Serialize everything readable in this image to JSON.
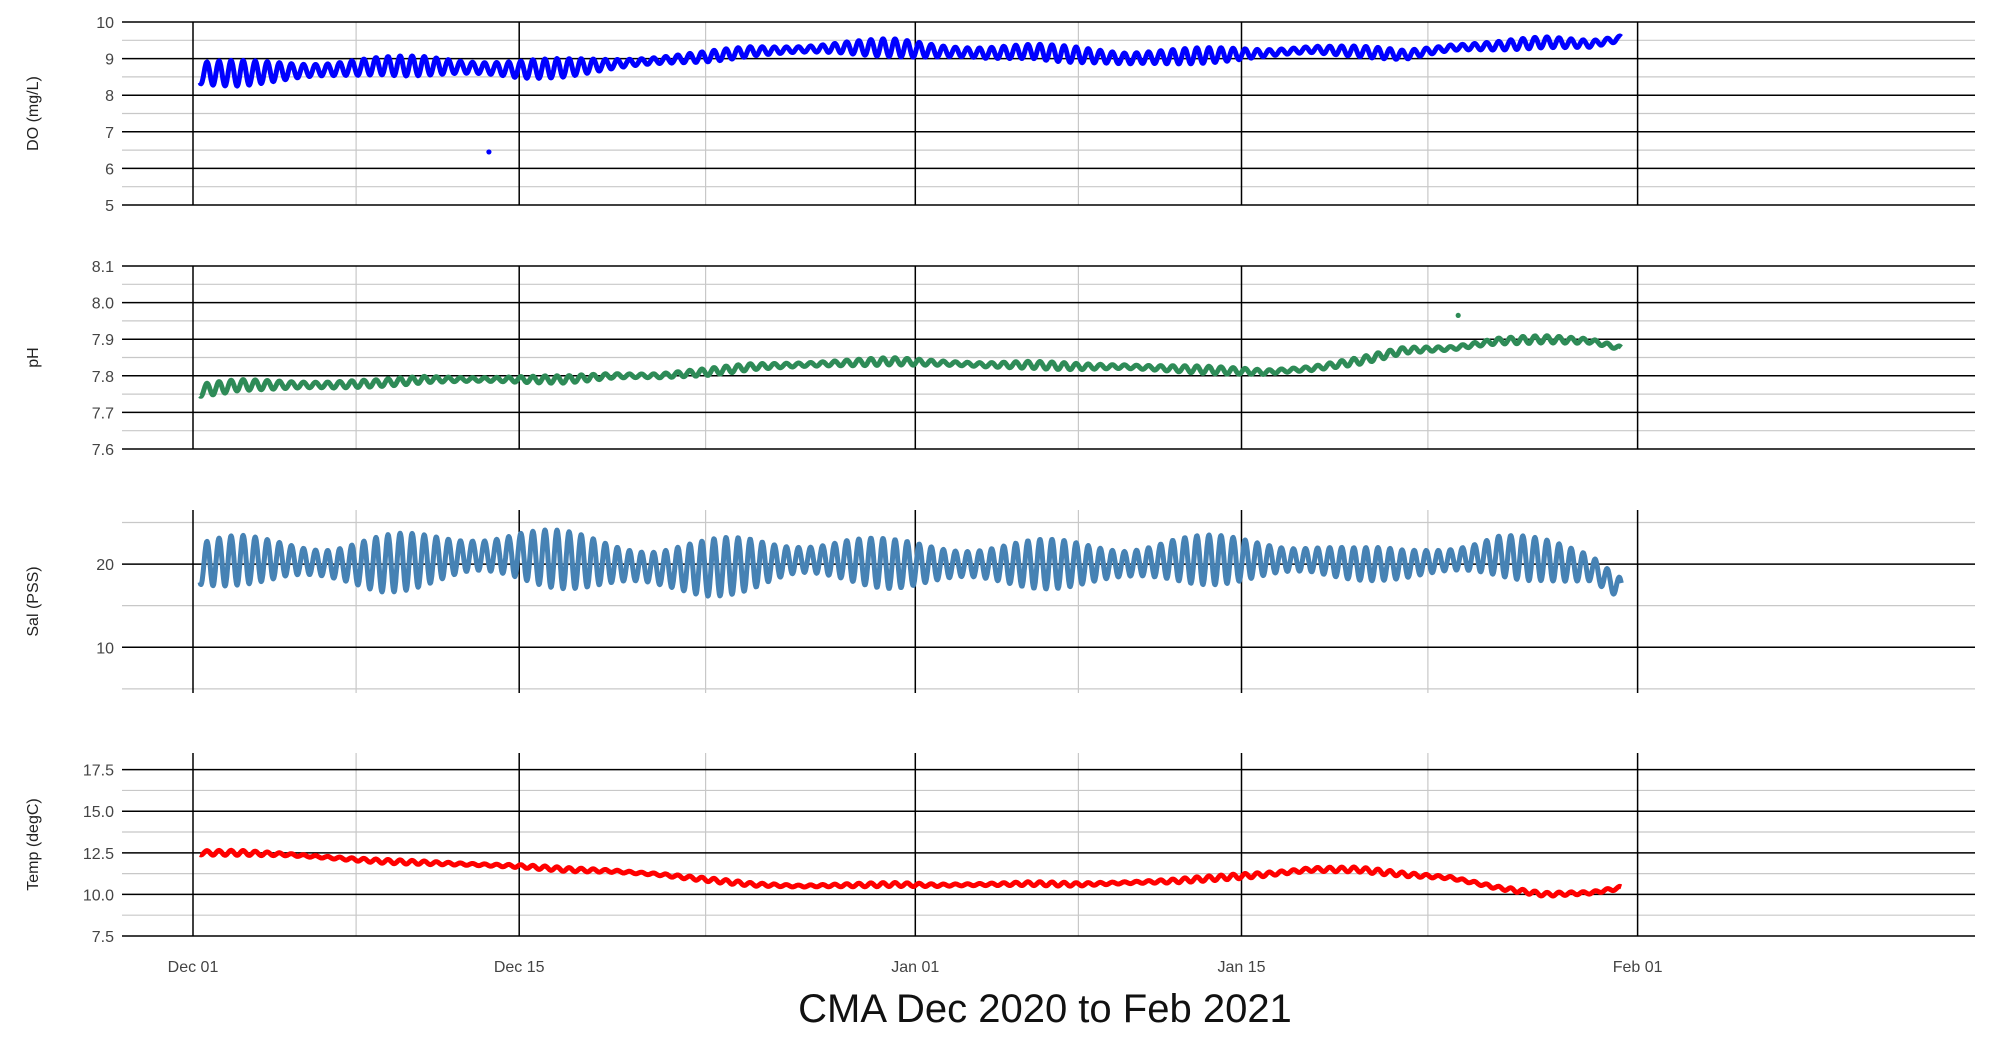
{
  "chart_data": {
    "type": "line",
    "title": "CMA Dec 2020 to Feb 2021",
    "x_range": [
      "2020-11-28",
      "2021-02-03"
    ],
    "x_major_ticks": [
      {
        "date": "2020-12-01",
        "label": "Dec 01"
      },
      {
        "date": "2020-12-15",
        "label": "Dec 15"
      },
      {
        "date": "2021-01-01",
        "label": "Jan 01"
      },
      {
        "date": "2021-01-15",
        "label": "Jan 15"
      },
      {
        "date": "2021-02-01",
        "label": "Feb 01"
      }
    ],
    "x_minor_ticks": [
      "2020-12-08",
      "2020-12-23",
      "2021-01-08",
      "2021-01-23"
    ],
    "grid": true,
    "panels": [
      {
        "ylabel": "DO (mg/L)",
        "ylim": [
          5,
          10
        ],
        "yticks": [
          5,
          6,
          7,
          8,
          9,
          10
        ],
        "tick_labels": [
          "5",
          "6",
          "7",
          "8",
          "9",
          "10"
        ],
        "color": "#0000ff",
        "series": {
          "x_day": [
            0.3,
            2,
            4,
            6,
            8,
            10,
            12,
            14,
            16,
            18,
            20,
            22,
            24,
            26,
            28,
            30,
            32,
            34,
            36,
            38,
            40,
            42,
            44,
            46,
            48,
            50,
            52,
            54,
            56,
            58,
            60,
            61.3
          ],
          "center": [
            8.6,
            8.6,
            8.65,
            8.7,
            8.8,
            8.8,
            8.75,
            8.7,
            8.75,
            8.85,
            8.95,
            9.05,
            9.2,
            9.25,
            9.3,
            9.3,
            9.2,
            9.15,
            9.2,
            9.1,
            9.0,
            9.05,
            9.1,
            9.15,
            9.25,
            9.2,
            9.1,
            9.3,
            9.35,
            9.45,
            9.4,
            9.55
          ],
          "amplitude": [
            0.35,
            0.35,
            0.35,
            0.3,
            0.25,
            0.3,
            0.3,
            0.3,
            0.25,
            0.2,
            0.15,
            0.15,
            0.15,
            0.15,
            0.2,
            0.25,
            0.25,
            0.25,
            0.2,
            0.25,
            0.3,
            0.25,
            0.2,
            0.15,
            0.15,
            0.15,
            0.15,
            0.15,
            0.15,
            0.15,
            0.15,
            0.15
          ]
        },
        "outliers": [
          {
            "x_day": 12.7,
            "y": 6.45
          }
        ]
      },
      {
        "ylabel": "pH",
        "ylim": [
          7.6,
          8.1
        ],
        "yticks": [
          7.6,
          7.7,
          7.8,
          7.9,
          8.0,
          8.1
        ],
        "tick_labels": [
          "7.6",
          "7.7",
          "7.8",
          "7.9",
          "8.0",
          "8.1"
        ],
        "color": "#2e8b57",
        "series": {
          "x_day": [
            0.3,
            2,
            4,
            6,
            8,
            10,
            12,
            14,
            16,
            18,
            20,
            22,
            24,
            26,
            28,
            30,
            32,
            34,
            36,
            38,
            40,
            42,
            44,
            46,
            48,
            50,
            52,
            54,
            56,
            58,
            60,
            61.3
          ],
          "center": [
            7.76,
            7.775,
            7.775,
            7.775,
            7.78,
            7.79,
            7.79,
            7.79,
            7.79,
            7.8,
            7.8,
            7.81,
            7.825,
            7.83,
            7.835,
            7.84,
            7.835,
            7.83,
            7.83,
            7.825,
            7.825,
            7.82,
            7.815,
            7.81,
            7.82,
            7.84,
            7.87,
            7.875,
            7.895,
            7.9,
            7.895,
            7.875
          ],
          "amplitude": [
            0.02,
            0.015,
            0.015,
            0.015,
            0.01,
            0.01,
            0.01,
            0.01,
            0.01,
            0.01,
            0.01,
            0.01,
            0.01,
            0.01,
            0.01,
            0.01,
            0.01,
            0.01,
            0.01,
            0.01,
            0.01,
            0.01,
            0.01,
            0.01,
            0.01,
            0.01,
            0.01,
            0.01,
            0.01,
            0.01,
            0.01,
            0.01
          ]
        },
        "outliers": [
          {
            "x_day": 54.3,
            "y": 7.965
          }
        ]
      },
      {
        "ylabel": "Sal (PSS)",
        "ylim": [
          4.5,
          26.5
        ],
        "yticks": [
          10,
          20
        ],
        "tick_labels": [
          "10",
          "20"
        ],
        "color": "#4682b4",
        "series": {
          "x_day": [
            0.3,
            2,
            4,
            6,
            8,
            10,
            12,
            14,
            16,
            18,
            20,
            22,
            24,
            26,
            28,
            30,
            32,
            34,
            36,
            38,
            40,
            42,
            44,
            46,
            48,
            50,
            52,
            54,
            56,
            58,
            60,
            61.3
          ],
          "center": [
            20,
            20.5,
            20.5,
            20,
            20,
            20.5,
            21,
            21,
            20.5,
            20,
            19.5,
            19.5,
            20,
            20.5,
            20.5,
            20,
            20,
            20,
            20,
            20,
            20,
            20.5,
            20.5,
            20.5,
            20.5,
            20,
            20,
            20.5,
            21,
            20.5,
            19.5,
            17
          ],
          "amplitude": [
            3,
            3,
            3,
            3,
            3.5,
            3.5,
            3.5,
            3.5,
            3.5,
            3.5,
            3.5,
            3.5,
            3.5,
            3,
            3,
            3,
            3,
            3,
            3,
            3,
            3,
            3,
            3,
            3,
            2.5,
            2,
            2,
            2.5,
            3,
            2.5,
            2.5,
            2.5
          ]
        },
        "outliers": []
      },
      {
        "ylabel": "Temp (degC)",
        "ylim": [
          7.5,
          18.5
        ],
        "yticks": [
          7.5,
          10.0,
          12.5,
          15.0,
          17.5
        ],
        "tick_labels": [
          "7.5",
          "10.0",
          "12.5",
          "15.0",
          "17.5"
        ],
        "color": "#ff0000",
        "series": {
          "x_day": [
            0.3,
            2,
            4,
            6,
            8,
            10,
            12,
            14,
            16,
            18,
            20,
            22,
            24,
            26,
            28,
            30,
            32,
            34,
            36,
            38,
            40,
            42,
            44,
            46,
            48,
            50,
            52,
            54,
            56,
            58,
            60,
            61.3
          ],
          "center": [
            12.5,
            12.5,
            12.4,
            12.2,
            12.0,
            11.9,
            11.8,
            11.7,
            11.5,
            11.4,
            11.2,
            10.9,
            10.6,
            10.5,
            10.55,
            10.6,
            10.55,
            10.6,
            10.65,
            10.6,
            10.7,
            10.8,
            11.0,
            11.2,
            11.5,
            11.5,
            11.2,
            11.0,
            10.4,
            10.0,
            10.1,
            10.4
          ],
          "amplitude": [
            0.15,
            0.15,
            0.12,
            0.12,
            0.12,
            0.12,
            0.12,
            0.12,
            0.12,
            0.12,
            0.12,
            0.12,
            0.12,
            0.12,
            0.12,
            0.12,
            0.12,
            0.12,
            0.12,
            0.12,
            0.12,
            0.15,
            0.15,
            0.2,
            0.2,
            0.15,
            0.15,
            0.15,
            0.12,
            0.12,
            0.12,
            0.2
          ]
        },
        "outliers": []
      }
    ]
  }
}
